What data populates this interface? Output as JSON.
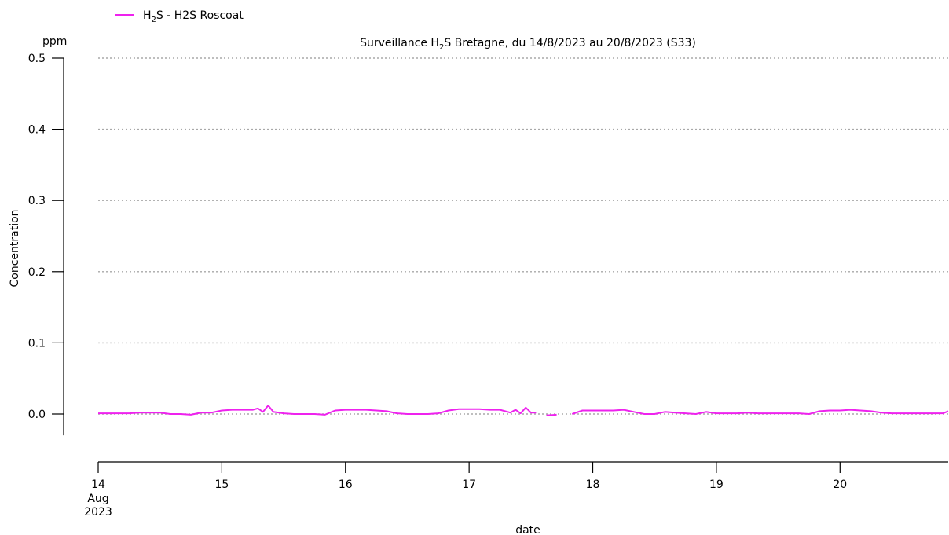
{
  "chart_data": {
    "type": "line",
    "title_pre": "Surveillance H",
    "title_sub": "2",
    "title_post": "S Bretagne, du 14/8/2023 au 20/8/2023 (S33)",
    "ylabel": "Concentration",
    "yunit": "ppm",
    "xlabel": "date",
    "xlim": [
      "2023-08-14T00:00",
      "2023-08-20T21:00"
    ],
    "ylim": [
      -0.03,
      0.5
    ],
    "yticks": [
      0.0,
      0.1,
      0.2,
      0.3,
      0.4,
      0.5
    ],
    "ytick_labels": [
      "0.0",
      "0.1",
      "0.2",
      "0.3",
      "0.4",
      "0.5"
    ],
    "grid": "horizontal dotted",
    "legend_position": "top-left",
    "xticks": [
      {
        "x": "2023-08-14T00:00",
        "label": "14",
        "extra": [
          "Aug",
          "2023"
        ]
      },
      {
        "x": "2023-08-15T00:00",
        "label": "15"
      },
      {
        "x": "2023-08-16T00:00",
        "label": "16"
      },
      {
        "x": "2023-08-17T00:00",
        "label": "17"
      },
      {
        "x": "2023-08-18T00:00",
        "label": "18"
      },
      {
        "x": "2023-08-19T00:00",
        "label": "19"
      },
      {
        "x": "2023-08-20T00:00",
        "label": "20"
      }
    ],
    "series": [
      {
        "legend_pre": "H",
        "legend_sub": "2",
        "legend_post": "S - H2S Roscoat",
        "color": "#ee22ee",
        "points": [
          [
            "2023-08-14T00:00",
            0.001
          ],
          [
            "2023-08-14T02:00",
            0.001
          ],
          [
            "2023-08-14T04:00",
            0.001
          ],
          [
            "2023-08-14T06:00",
            0.001
          ],
          [
            "2023-08-14T08:00",
            0.002
          ],
          [
            "2023-08-14T10:00",
            0.002
          ],
          [
            "2023-08-14T12:00",
            0.002
          ],
          [
            "2023-08-14T14:00",
            0.0
          ],
          [
            "2023-08-14T16:00",
            0.0
          ],
          [
            "2023-08-14T18:00",
            -0.001
          ],
          [
            "2023-08-14T20:00",
            0.002
          ],
          [
            "2023-08-14T22:00",
            0.002
          ],
          [
            "2023-08-15T00:00",
            0.005
          ],
          [
            "2023-08-15T02:00",
            0.006
          ],
          [
            "2023-08-15T04:00",
            0.006
          ],
          [
            "2023-08-15T06:00",
            0.006
          ],
          [
            "2023-08-15T07:00",
            0.008
          ],
          [
            "2023-08-15T08:00",
            0.003
          ],
          [
            "2023-08-15T09:00",
            0.012
          ],
          [
            "2023-08-15T10:00",
            0.003
          ],
          [
            "2023-08-15T12:00",
            0.001
          ],
          [
            "2023-08-15T14:00",
            0.0
          ],
          [
            "2023-08-15T16:00",
            0.0
          ],
          [
            "2023-08-15T18:00",
            0.0
          ],
          [
            "2023-08-15T20:00",
            -0.001
          ],
          [
            "2023-08-15T22:00",
            0.005
          ],
          [
            "2023-08-16T00:00",
            0.006
          ],
          [
            "2023-08-16T02:00",
            0.006
          ],
          [
            "2023-08-16T04:00",
            0.006
          ],
          [
            "2023-08-16T06:00",
            0.005
          ],
          [
            "2023-08-16T08:00",
            0.004
          ],
          [
            "2023-08-16T10:00",
            0.001
          ],
          [
            "2023-08-16T12:00",
            0.0
          ],
          [
            "2023-08-16T14:00",
            0.0
          ],
          [
            "2023-08-16T16:00",
            0.0
          ],
          [
            "2023-08-16T18:00",
            0.001
          ],
          [
            "2023-08-16T20:00",
            0.005
          ],
          [
            "2023-08-16T22:00",
            0.007
          ],
          [
            "2023-08-17T00:00",
            0.007
          ],
          [
            "2023-08-17T02:00",
            0.007
          ],
          [
            "2023-08-17T04:00",
            0.006
          ],
          [
            "2023-08-17T06:00",
            0.006
          ],
          [
            "2023-08-17T08:00",
            0.002
          ],
          [
            "2023-08-17T09:00",
            0.006
          ],
          [
            "2023-08-17T10:00",
            0.001
          ],
          [
            "2023-08-17T11:00",
            0.009
          ],
          [
            "2023-08-17T12:00",
            0.002
          ],
          [
            "2023-08-17T13:00",
            0.002
          ],
          [
            "2023-08-17T14:00",
            null
          ],
          [
            "2023-08-17T15:00",
            -0.002
          ],
          [
            "2023-08-17T17:00",
            -0.001
          ],
          [
            "2023-08-17T18:00",
            null
          ],
          [
            "2023-08-17T20:00",
            0.0
          ],
          [
            "2023-08-17T22:00",
            0.005
          ],
          [
            "2023-08-18T00:00",
            0.005
          ],
          [
            "2023-08-18T02:00",
            0.005
          ],
          [
            "2023-08-18T04:00",
            0.005
          ],
          [
            "2023-08-18T06:00",
            0.006
          ],
          [
            "2023-08-18T08:00",
            0.003
          ],
          [
            "2023-08-18T10:00",
            0.0
          ],
          [
            "2023-08-18T12:00",
            0.0
          ],
          [
            "2023-08-18T14:00",
            0.003
          ],
          [
            "2023-08-18T16:00",
            0.002
          ],
          [
            "2023-08-18T18:00",
            0.001
          ],
          [
            "2023-08-18T20:00",
            0.0
          ],
          [
            "2023-08-18T22:00",
            0.003
          ],
          [
            "2023-08-19T00:00",
            0.001
          ],
          [
            "2023-08-19T02:00",
            0.001
          ],
          [
            "2023-08-19T04:00",
            0.001
          ],
          [
            "2023-08-19T06:00",
            0.002
          ],
          [
            "2023-08-19T08:00",
            0.001
          ],
          [
            "2023-08-19T10:00",
            0.001
          ],
          [
            "2023-08-19T12:00",
            0.001
          ],
          [
            "2023-08-19T14:00",
            0.001
          ],
          [
            "2023-08-19T16:00",
            0.001
          ],
          [
            "2023-08-19T18:00",
            0.0
          ],
          [
            "2023-08-19T20:00",
            0.004
          ],
          [
            "2023-08-19T22:00",
            0.005
          ],
          [
            "2023-08-20T00:00",
            0.005
          ],
          [
            "2023-08-20T02:00",
            0.006
          ],
          [
            "2023-08-20T04:00",
            0.005
          ],
          [
            "2023-08-20T06:00",
            0.004
          ],
          [
            "2023-08-20T08:00",
            0.002
          ],
          [
            "2023-08-20T10:00",
            0.001
          ],
          [
            "2023-08-20T12:00",
            0.001
          ],
          [
            "2023-08-20T14:00",
            0.001
          ],
          [
            "2023-08-20T16:00",
            0.001
          ],
          [
            "2023-08-20T18:00",
            0.001
          ],
          [
            "2023-08-20T20:00",
            0.001
          ],
          [
            "2023-08-20T21:00",
            0.004
          ]
        ]
      }
    ]
  }
}
